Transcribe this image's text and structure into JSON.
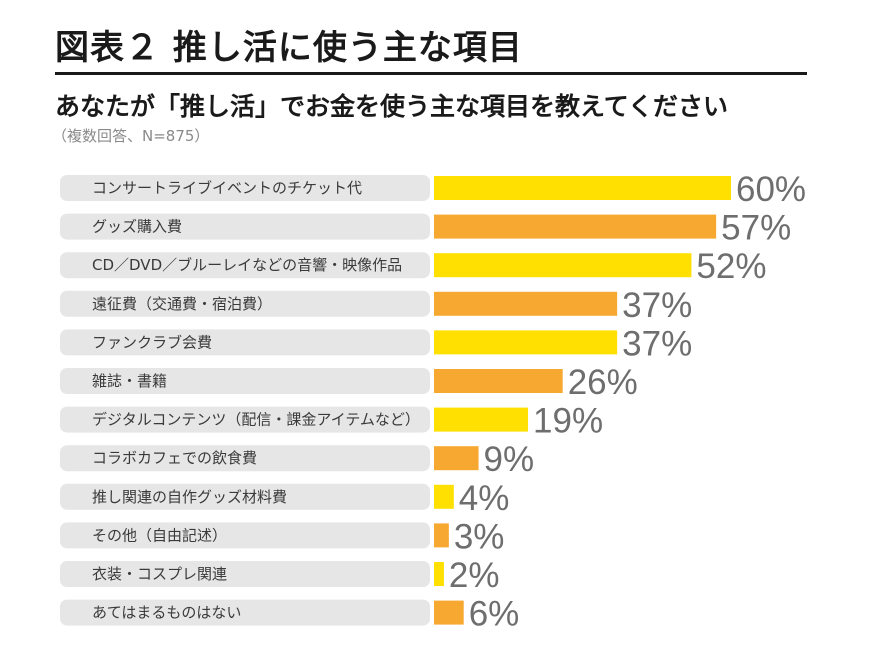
{
  "figure_title": "図表２ 推し活に使う主な項目",
  "question": "あなたが「推し活」でお金を使う主な項目を教えてください",
  "note": "（複数回答、N=875）",
  "colors": {
    "odd_bar": "#FFE000",
    "even_bar": "#F7A830",
    "label_pill": "#E6E6E6"
  },
  "chart_data": {
    "type": "bar",
    "orientation": "horizontal",
    "unit": "%",
    "categories": [
      "コンサートライブイベントのチケット代",
      "グッズ購入費",
      "CD／DVD／ブルーレイなどの音響・映像作品",
      "遠征費（交通費・宿泊費）",
      "ファンクラブ会費",
      "雑誌・書籍",
      "デジタルコンテンツ（配信・課金アイテムなど）",
      "コラボカフェでの飲食費",
      "推し関連の自作グッズ材料費",
      "その他（自由記述）",
      "衣装・コスプレ関連",
      "あてはまるものはない"
    ],
    "values": [
      60,
      57,
      52,
      37,
      37,
      26,
      19,
      9,
      4,
      3,
      2,
      6
    ],
    "value_labels": [
      "60%",
      "57%",
      "52%",
      "37%",
      "37%",
      "26%",
      "19%",
      "9%",
      "4%",
      "3%",
      "2%",
      "6%"
    ],
    "xlim": [
      0,
      60
    ],
    "grid": false,
    "legend": "none"
  }
}
